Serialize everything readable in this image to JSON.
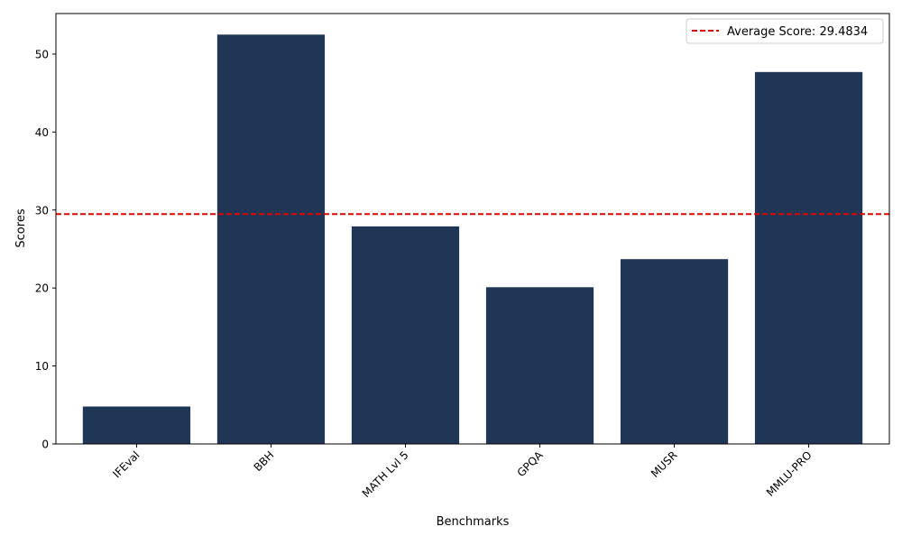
{
  "chart_data": {
    "type": "bar",
    "title": "",
    "xlabel": "Benchmarks",
    "ylabel": "Scores",
    "categories": [
      "IFEval",
      "BBH",
      "MATH Lvl 5",
      "GPQA",
      "MUSR",
      "MMLU-PRO"
    ],
    "values": [
      4.8,
      52.5,
      27.9,
      20.1,
      23.7,
      47.7
    ],
    "ylim": [
      0,
      55.2
    ],
    "yticks": [
      0,
      10,
      20,
      30,
      40,
      50
    ],
    "tick_rotation": 45,
    "reference_line": {
      "value": 29.4834,
      "label": "Average Score: 29.4834",
      "style": "dashed",
      "color": "#e00000"
    },
    "bar_color": "#1f3657",
    "legend_position": "top-right",
    "grid": false
  }
}
